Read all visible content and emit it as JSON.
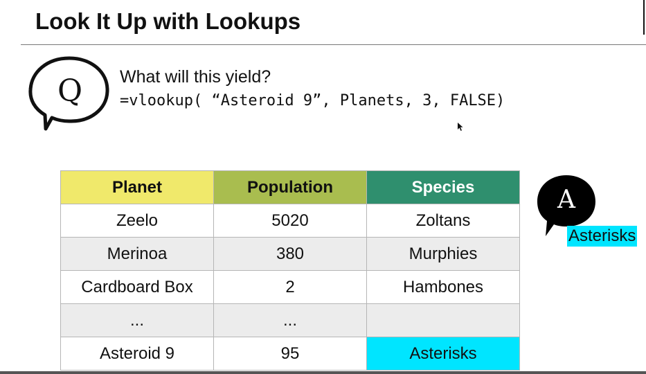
{
  "slide": {
    "title": "Look It Up with Lookups",
    "question_badge": "Q",
    "question": "What will this yield?",
    "formula": "=vlookup( “Asteroid 9”, Planets, 3, FALSE)",
    "answer_badge": "A",
    "answer": "Asterisks"
  },
  "table": {
    "headers": [
      "Planet",
      "Population",
      "Species"
    ],
    "header_colors": [
      "#f0e96b",
      "#a9bd4f",
      "#2f8f6e"
    ],
    "highlight_color": "#00e5ff",
    "rows": [
      [
        "Zeelo",
        "5020",
        "Zoltans"
      ],
      [
        "Merinoa",
        "380",
        "Murphies"
      ],
      [
        "Cardboard Box",
        "2",
        "Hambones"
      ],
      [
        "...",
        "...",
        ""
      ],
      [
        "Asteroid 9",
        "95",
        "Asterisks"
      ]
    ]
  }
}
